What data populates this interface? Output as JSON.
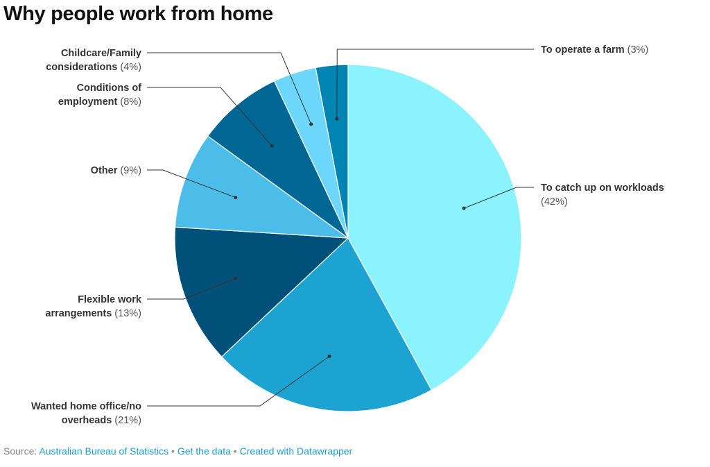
{
  "title": "Why people work from home",
  "chart_data": {
    "type": "pie",
    "title": "Why people work from home",
    "start_angle_deg": 0,
    "direction": "clockwise",
    "slices": [
      {
        "label": "To catch up on workloads",
        "value": 42,
        "pct_text": "(42%)",
        "color": "#8af3fd"
      },
      {
        "label": "Wanted home office/no overheads",
        "value": 21,
        "pct_text": "(21%)",
        "color": "#1ca3d1"
      },
      {
        "label": "Flexible work arrangements",
        "value": 13,
        "pct_text": "(13%)",
        "color": "#00507a"
      },
      {
        "label": "Other",
        "value": 9,
        "pct_text": "(9%)",
        "color": "#4cbde8"
      },
      {
        "label": "Conditions of employment",
        "value": 8,
        "pct_text": "(8%)",
        "color": "#006694"
      },
      {
        "label": "Childcare/Family considerations",
        "value": 4,
        "pct_text": "(4%)",
        "color": "#6dd7fb"
      },
      {
        "label": "To operate a farm",
        "value": 3,
        "pct_text": "(3%)",
        "color": "#0084b2"
      }
    ]
  },
  "footer": {
    "source_prefix": "Source:",
    "source_link": "Australian Bureau of Statistics",
    "separator": "•",
    "get_data_link": "Get the data",
    "created_with_link": "Created with Datawrapper"
  }
}
